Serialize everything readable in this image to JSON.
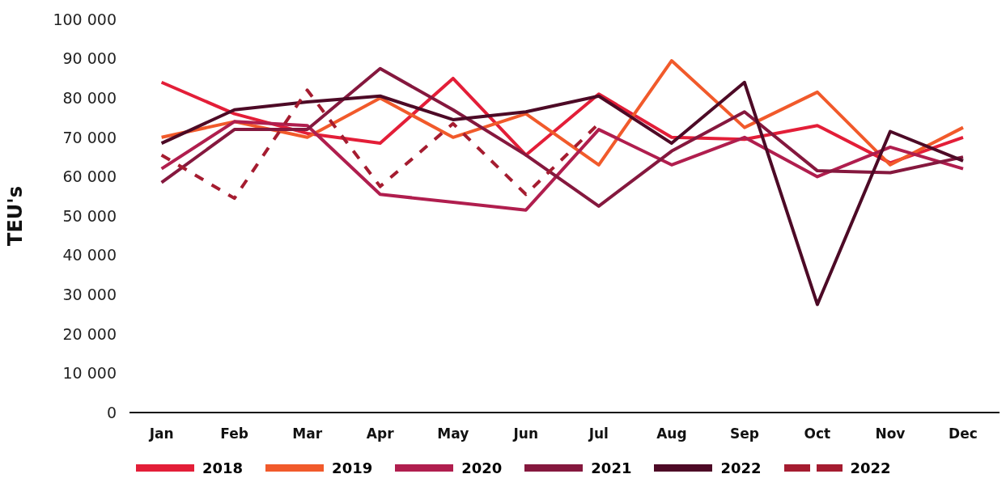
{
  "chart_data": {
    "type": "line",
    "ylabel": "TEU's",
    "categories": [
      "Jan",
      "Feb",
      "Mar",
      "Apr",
      "May",
      "Jun",
      "Jul",
      "Aug",
      "Sep",
      "Oct",
      "Nov",
      "Dec"
    ],
    "ylim": [
      0,
      100000
    ],
    "yticks": [
      {
        "value": 0,
        "label": "0"
      },
      {
        "value": 10000,
        "label": "10 000"
      },
      {
        "value": 20000,
        "label": "20 000"
      },
      {
        "value": 30000,
        "label": "30 000"
      },
      {
        "value": 40000,
        "label": "40 000"
      },
      {
        "value": 50000,
        "label": "50 000"
      },
      {
        "value": 60000,
        "label": "60 000"
      },
      {
        "value": 70000,
        "label": "70 000"
      },
      {
        "value": 80000,
        "label": "80 000"
      },
      {
        "value": 90000,
        "label": "90 000"
      },
      {
        "value": 100000,
        "label": "100 000"
      }
    ],
    "grid": false,
    "legend": "bottom",
    "marker": "none",
    "series": [
      {
        "name": "2018",
        "color": "#e31e38",
        "values": [
          84000,
          76000,
          71000,
          68500,
          85000,
          65500,
          81000,
          70000,
          69500,
          73000,
          63500,
          70000
        ]
      },
      {
        "name": "2019",
        "color": "#f15a2b",
        "values": [
          70000,
          74000,
          70000,
          80000,
          70000,
          76000,
          63000,
          89500,
          72500,
          81500,
          63000,
          72500
        ]
      },
      {
        "name": "2020",
        "color": "#b01e4e",
        "values": [
          62000,
          74000,
          73000,
          55500,
          53500,
          51500,
          72000,
          63000,
          70000,
          60000,
          67500,
          62000
        ]
      },
      {
        "name": "2021",
        "color": "#85183e",
        "values": [
          58500,
          72000,
          72000,
          87500,
          77000,
          65500,
          52500,
          66500,
          76500,
          61500,
          61000,
          65000
        ]
      },
      {
        "name": "2022",
        "color": "#4d0a26",
        "values": [
          68500,
          77000,
          79000,
          80500,
          74500,
          76500,
          80500,
          68500,
          84000,
          27500,
          71500,
          64000
        ]
      },
      {
        "name": "2022",
        "color": "#a51c30",
        "line_style": "dashed",
        "values": [
          65500,
          54500,
          82000,
          57500,
          73500,
          55500,
          73500,
          null,
          null,
          null,
          null,
          null
        ]
      }
    ]
  }
}
